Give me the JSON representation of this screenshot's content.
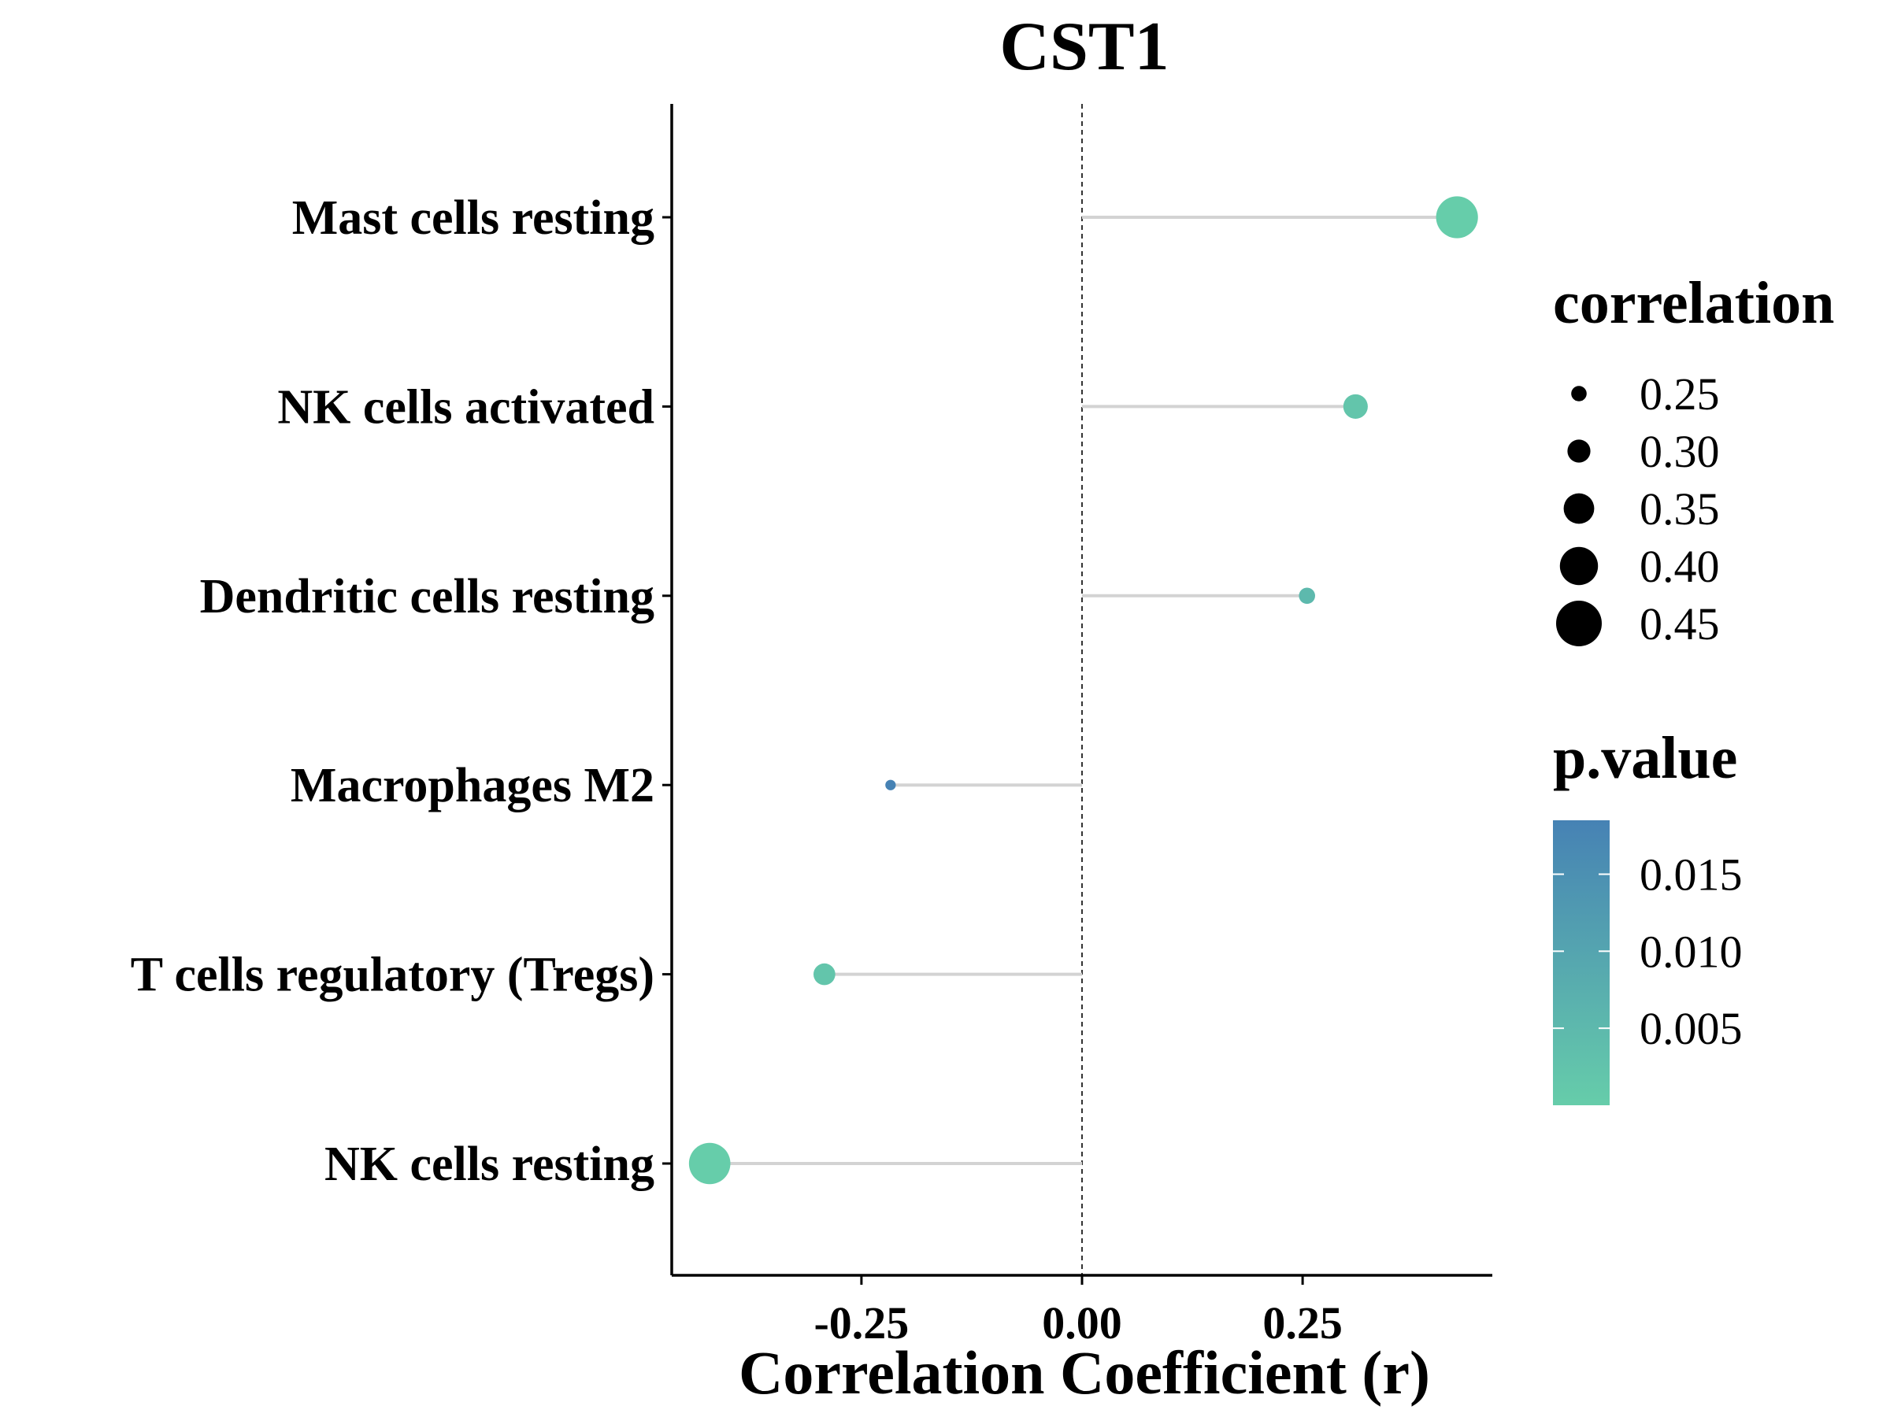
{
  "chart_data": {
    "type": "scatter",
    "subtype": "lollipop",
    "title": "CST1",
    "xlabel": "Correlation Coefficient (r)",
    "ylabel": "",
    "xlim": [
      -0.465,
      0.465
    ],
    "x_ticks": [
      -0.25,
      0.0,
      0.25
    ],
    "x_tick_labels": [
      "-0.25",
      "0.00",
      "0.25"
    ],
    "reference_line": {
      "x": 0,
      "style": "dashed"
    },
    "grid": false,
    "categories": [
      "Mast cells resting",
      "NK cells activated",
      "Dendritic cells resting",
      "Macrophages M2",
      "T cells regulatory (Tregs)",
      "NK cells resting"
    ],
    "points": [
      {
        "label": "Mast cells resting",
        "r": 0.425,
        "p_value": 0.0001
      },
      {
        "label": "NK cells activated",
        "r": 0.31,
        "p_value": 0.002
      },
      {
        "label": "Dendritic cells resting",
        "r": 0.255,
        "p_value": 0.005
      },
      {
        "label": "Macrophages M2",
        "r": -0.217,
        "p_value": 0.019
      },
      {
        "label": "T cells regulatory (Tregs)",
        "r": -0.292,
        "p_value": 0.002
      },
      {
        "label": "NK cells resting",
        "r": -0.422,
        "p_value": 0.0001
      }
    ],
    "size_legend": {
      "title": "correlation",
      "values": [
        0.25,
        0.3,
        0.35,
        0.4,
        0.45
      ],
      "labels": [
        "0.25",
        "0.30",
        "0.35",
        "0.40",
        "0.45"
      ]
    },
    "color_legend": {
      "title": "p.value",
      "range": [
        0.0,
        0.0185
      ],
      "ticks": [
        0.015,
        0.01,
        0.005
      ],
      "tick_labels": [
        "0.015",
        "0.010",
        "0.005"
      ],
      "color_low": "#66cdaa",
      "color_high": "#4682b4"
    },
    "legend_position": "right",
    "segment_color": "#d3d3d3"
  }
}
